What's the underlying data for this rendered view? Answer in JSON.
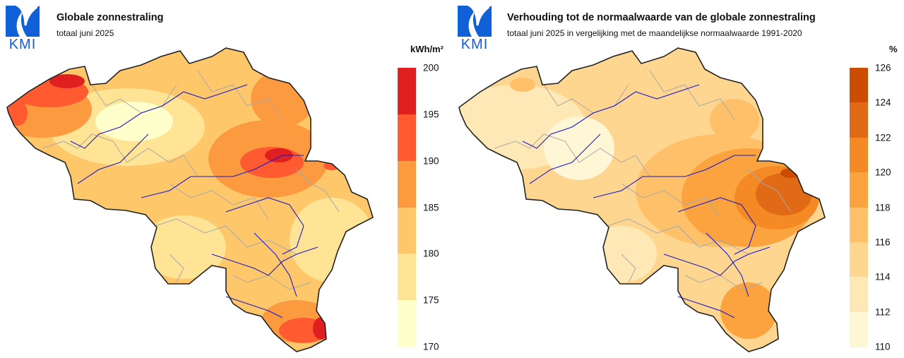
{
  "logo": {
    "text": "KMI",
    "color": "#1060d8"
  },
  "panels": [
    {
      "title": "Globale zonnestraling",
      "subtitle": "totaal juni 2025",
      "unit": "kWh/m²",
      "legend": {
        "ticks": [
          "200",
          "195",
          "190",
          "185",
          "180",
          "175",
          "170"
        ],
        "colors": [
          "#e02020",
          "#ff5a30",
          "#fc9a40",
          "#fec76a",
          "#fee494",
          "#ffffcc"
        ]
      }
    },
    {
      "title": "Verhouding tot de normaalwaarde van de globale zonnestraling",
      "subtitle": "totaal juni 2025 in vergelijking met de maandelijkse normaalwaarde 1991-2020",
      "unit": "%",
      "legend": {
        "ticks": [
          "126",
          "124",
          "122",
          "120",
          "118",
          "116",
          "114",
          "112",
          "110"
        ],
        "colors": [
          "#cc4c02",
          "#e06a15",
          "#f58a25",
          "#fba43f",
          "#fec068",
          "#fed690",
          "#fee8b5",
          "#fff6d6"
        ]
      }
    }
  ]
}
